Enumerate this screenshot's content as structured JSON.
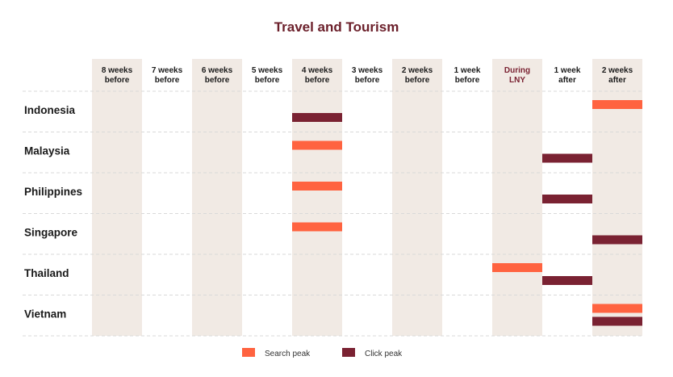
{
  "chart_data": {
    "type": "timeline",
    "title": "Travel and Tourism",
    "columns": [
      [
        "8 weeks",
        "before"
      ],
      [
        "7 weeks",
        "before"
      ],
      [
        "6 weeks",
        "before"
      ],
      [
        "5 weeks",
        "before"
      ],
      [
        "4 weeks",
        "before"
      ],
      [
        "3 weeks",
        "before"
      ],
      [
        "2 weeks",
        "before"
      ],
      [
        "1 week",
        "before"
      ],
      [
        "During",
        "LNY"
      ],
      [
        "1 week",
        "after"
      ],
      [
        "2 weeks",
        "after"
      ]
    ],
    "highlight_column": 8,
    "shaded_columns": [
      0,
      2,
      4,
      6,
      8,
      10
    ],
    "rows": [
      "Indonesia",
      "Malaysia",
      "Philippines",
      "Singapore",
      "Thailand",
      "Vietnam"
    ],
    "series": [
      {
        "name": "Search peak",
        "color": "#ff6340",
        "values": [
          "2 weeks after",
          "4 weeks before",
          "4 weeks before",
          "4 weeks before",
          "During LNY",
          "2 weeks after"
        ]
      },
      {
        "name": "Click peak",
        "color": "#7a2232",
        "values": [
          "4 weeks before",
          "1 week after",
          "1 week after",
          "2 weeks after",
          "1 week after",
          "2 weeks after"
        ]
      }
    ],
    "legend_position": "bottom"
  },
  "colors": {
    "title": "#6b1f2a",
    "shade": "#f1eae4",
    "grid": "#d9d9d9"
  }
}
